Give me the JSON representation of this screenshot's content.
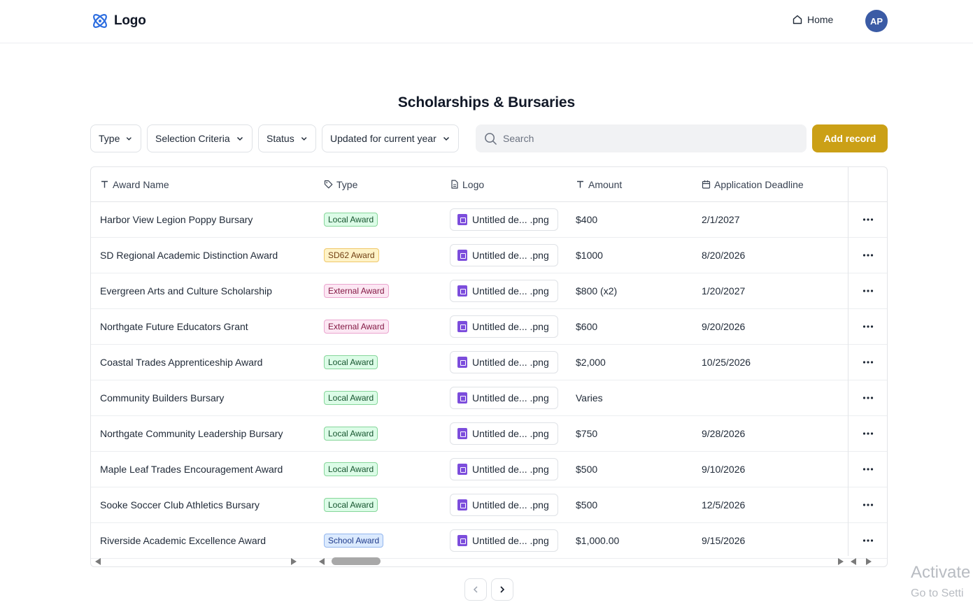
{
  "header": {
    "logo_label": "Logo",
    "home_label": "Home",
    "avatar_initials": "AP",
    "accent_color": "#3b5ba5"
  },
  "page": {
    "title": "Scholarships & Bursaries"
  },
  "toolbar": {
    "filters": [
      {
        "label": "Type",
        "icon": "chevron-down-icon"
      },
      {
        "label": "Selection Criteria",
        "icon": "chevron-down-icon"
      },
      {
        "label": "Status",
        "icon": "chevron-down-icon"
      },
      {
        "label": "Updated for current year",
        "icon": "chevron-down-icon"
      }
    ],
    "search_placeholder": "Search",
    "search_value": "",
    "add_label": "Add record",
    "add_color": "#cba016"
  },
  "table": {
    "columns": [
      {
        "label": "Award Name",
        "icon": "text-icon"
      },
      {
        "label": "Type",
        "icon": "tag-icon"
      },
      {
        "label": "Logo",
        "icon": "file-icon"
      },
      {
        "label": "Amount",
        "icon": "text-icon"
      },
      {
        "label": "Application Deadline",
        "icon": "calendar-icon"
      }
    ],
    "rows": [
      {
        "name": "Harbor View Legion Poppy Bursary",
        "type": "Local Award",
        "logo": "Untitled de... .png",
        "amount": "$400",
        "deadline": "2/1/2027"
      },
      {
        "name": "SD Regional Academic Distinction Award",
        "type": "SD62 Award",
        "logo": "Untitled de... .png",
        "amount": "$1000",
        "deadline": "8/20/2026"
      },
      {
        "name": "Evergreen Arts and Culture Scholarship",
        "type": "External Award",
        "logo": "Untitled de... .png",
        "amount": "$800 (x2)",
        "deadline": "1/20/2027"
      },
      {
        "name": "Northgate Future Educators Grant",
        "type": "External Award",
        "logo": "Untitled de... .png",
        "amount": "$600",
        "deadline": "9/20/2026"
      },
      {
        "name": "Coastal Trades Apprenticeship Award",
        "type": "Local Award",
        "logo": "Untitled de... .png",
        "amount": "$2,000",
        "deadline": "10/25/2026"
      },
      {
        "name": "Community Builders Bursary",
        "type": "Local Award",
        "logo": "Untitled de... .png",
        "amount": "Varies",
        "deadline": ""
      },
      {
        "name": "Northgate Community Leadership Bursary",
        "type": "Local Award",
        "logo": "Untitled de... .png",
        "amount": "$750",
        "deadline": "9/28/2026"
      },
      {
        "name": "Maple Leaf Trades Encouragement Award",
        "type": "Local Award",
        "logo": "Untitled de... .png",
        "amount": "$500",
        "deadline": "9/10/2026"
      },
      {
        "name": "Sooke Soccer Club Athletics Bursary",
        "type": "Local Award",
        "logo": "Untitled de... .png",
        "amount": "$500",
        "deadline": "12/5/2026"
      },
      {
        "name": "Riverside Academic Excellence Award",
        "type": "School Award",
        "logo": "Untitled de... .png",
        "amount": "$1,000.00",
        "deadline": "9/15/2026"
      }
    ],
    "badge_colors": {
      "Local Award": {
        "bg": "#dcfce7",
        "border": "#86d69a",
        "text": "#14532d"
      },
      "SD62 Award": {
        "bg": "#fef3c7",
        "border": "#f0c86a",
        "text": "#713f12"
      },
      "External Award": {
        "bg": "#fce7f3",
        "border": "#eba5cf",
        "text": "#831843"
      },
      "School Award": {
        "bg": "#dbeafe",
        "border": "#93b6ee",
        "text": "#1e3a8a"
      }
    },
    "row_action_icon": "more-horizontal-icon"
  },
  "pagination": {
    "prev_icon": "chevron-left-icon",
    "next_icon": "chevron-right-icon"
  },
  "watermark": {
    "line1": "Activate",
    "line2": "Go to Setti"
  }
}
